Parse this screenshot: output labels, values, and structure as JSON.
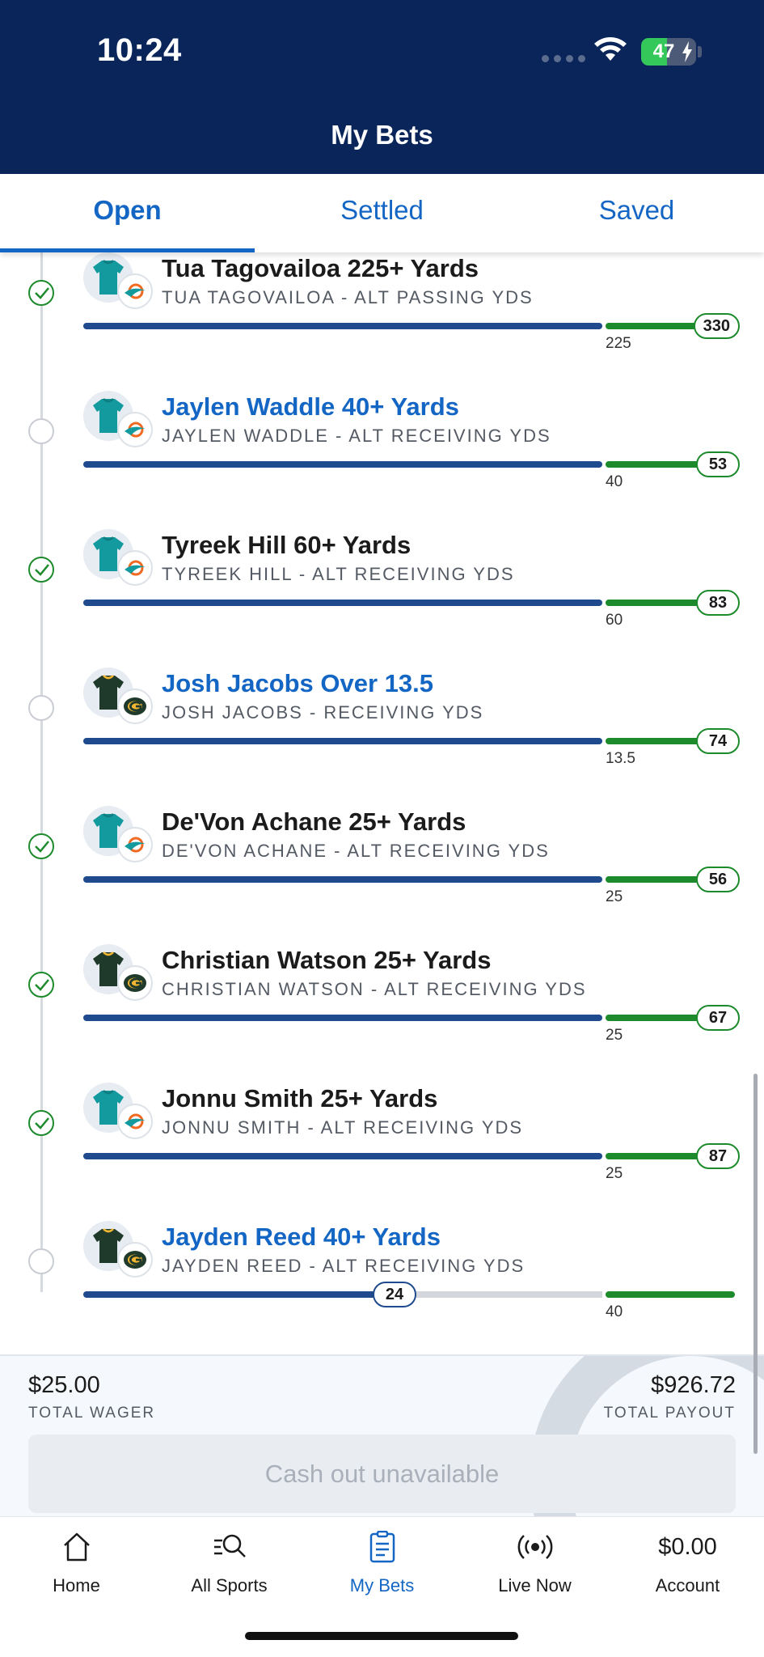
{
  "status_bar": {
    "time": "10:24",
    "battery_percent": 47,
    "battery_label": "47"
  },
  "header": {
    "title": "My Bets"
  },
  "tabs": [
    {
      "label": "Open",
      "active": true
    },
    {
      "label": "Settled",
      "active": false
    },
    {
      "label": "Saved",
      "active": false
    }
  ],
  "legs": [
    {
      "title": "Tua Tagovailoa 225+ Yards",
      "subtitle": "TUA TAGOVAILOA - ALT PASSING YDS",
      "target": "225",
      "current": "330",
      "won": true,
      "team": "dolphins",
      "link": false
    },
    {
      "title": "Jaylen Waddle 40+ Yards",
      "subtitle": "JAYLEN WADDLE - ALT RECEIVING YDS",
      "target": "40",
      "current": "53",
      "won": false,
      "team": "dolphins",
      "link": true
    },
    {
      "title": "Tyreek Hill 60+ Yards",
      "subtitle": "TYREEK HILL - ALT RECEIVING YDS",
      "target": "60",
      "current": "83",
      "won": true,
      "team": "dolphins",
      "link": false
    },
    {
      "title": "Josh Jacobs Over 13.5",
      "subtitle": "JOSH JACOBS - RECEIVING YDS",
      "target": "13.5",
      "current": "74",
      "won": false,
      "team": "packers",
      "link": true
    },
    {
      "title": "De'Von Achane 25+ Yards",
      "subtitle": "DE'VON ACHANE - ALT RECEIVING YDS",
      "target": "25",
      "current": "56",
      "won": true,
      "team": "dolphins",
      "link": false
    },
    {
      "title": "Christian Watson 25+ Yards",
      "subtitle": "CHRISTIAN WATSON - ALT RECEIVING YDS",
      "target": "25",
      "current": "67",
      "won": true,
      "team": "packers",
      "link": false
    },
    {
      "title": "Jonnu Smith 25+ Yards",
      "subtitle": "JONNU SMITH - ALT RECEIVING YDS",
      "target": "25",
      "current": "87",
      "won": true,
      "team": "dolphins",
      "link": false
    },
    {
      "title": "Jayden Reed 40+ Yards",
      "subtitle": "JAYDEN REED - ALT RECEIVING YDS",
      "target": "40",
      "current": "24",
      "won": false,
      "team": "packers",
      "link": true,
      "progress_fraction": 0.6
    }
  ],
  "summary": {
    "total_wager": "$25.00",
    "total_wager_label": "TOTAL WAGER",
    "total_payout": "$926.72",
    "total_payout_label": "TOTAL PAYOUT",
    "cashout_label": "Cash out unavailable"
  },
  "bottom_nav": [
    {
      "label": "Home",
      "icon": "home-icon",
      "active": false
    },
    {
      "label": "All Sports",
      "icon": "search-list-icon",
      "active": false
    },
    {
      "label": "My Bets",
      "icon": "bet-slip-icon",
      "active": true
    },
    {
      "label": "Live Now",
      "icon": "live-broadcast-icon",
      "active": false
    },
    {
      "label": "Account",
      "icon": "account-balance",
      "active": false,
      "balance": "$0.00"
    }
  ],
  "colors": {
    "header_bg": "#0a2559",
    "accent_blue": "#1466c4",
    "bar_blue": "#1f4b8e",
    "win_green": "#1d8a2c"
  }
}
